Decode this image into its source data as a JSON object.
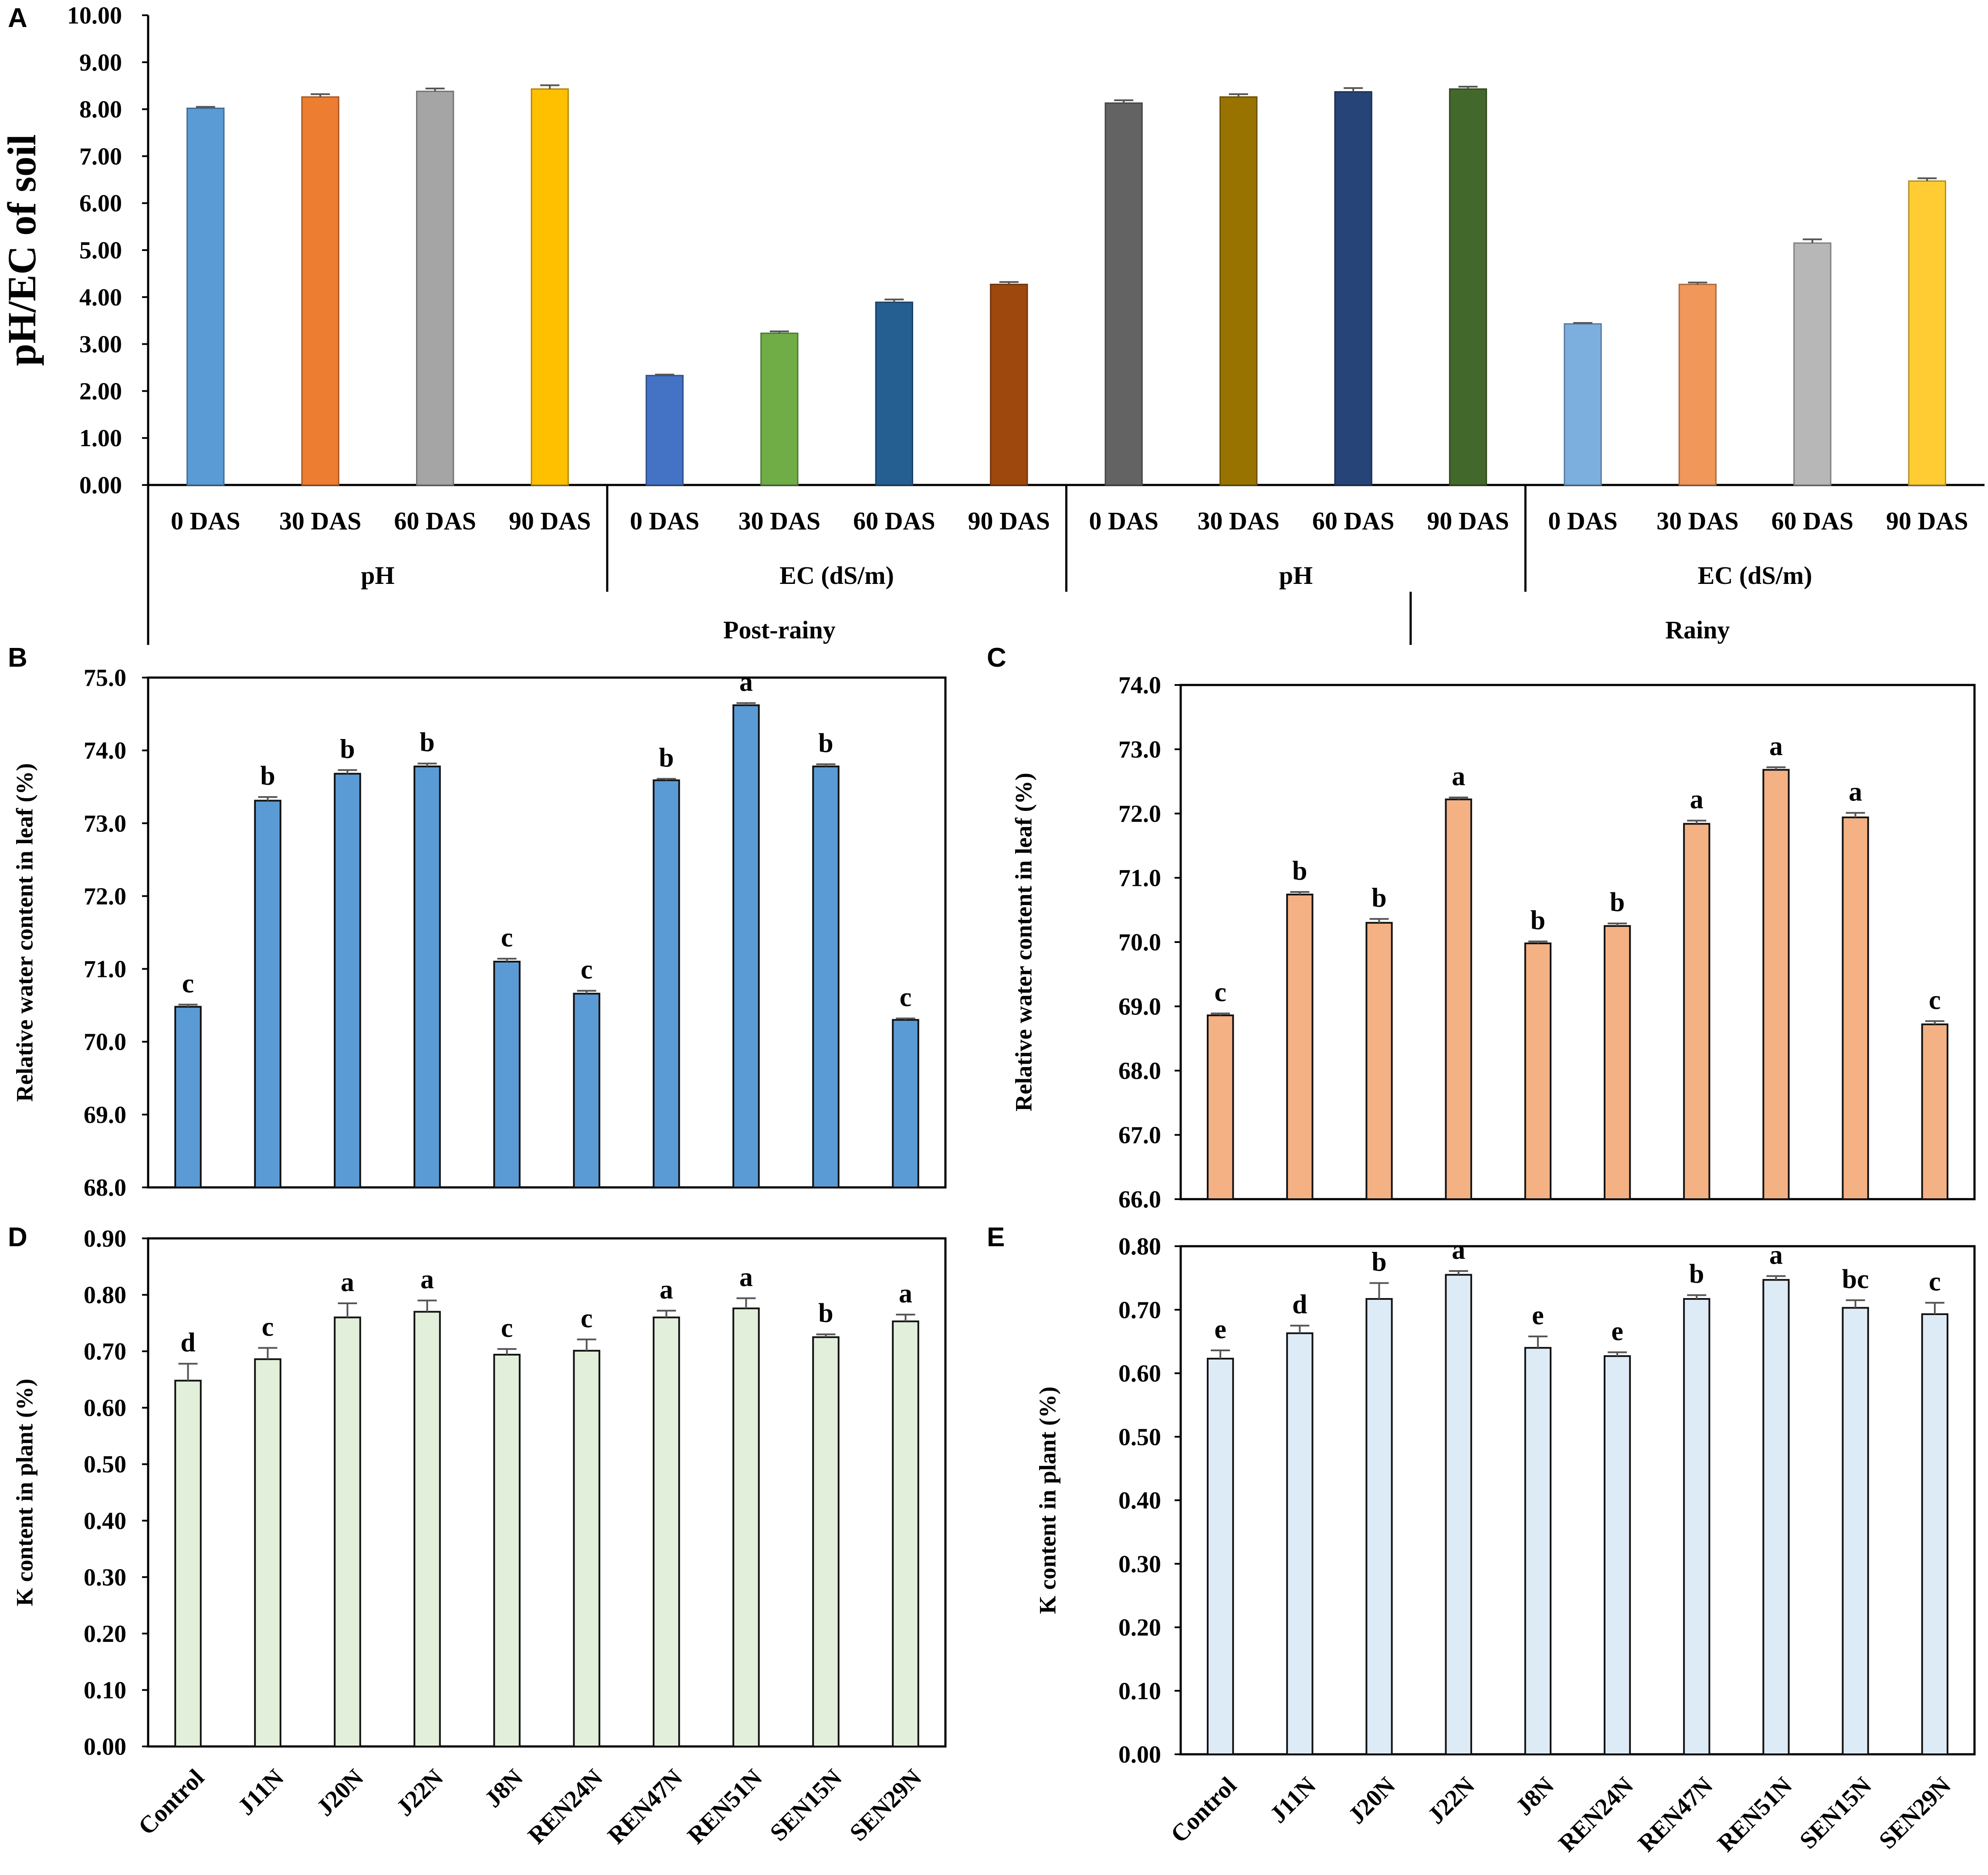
{
  "figure": {
    "panel_letters": [
      "A",
      "B",
      "C",
      "D",
      "E"
    ]
  },
  "chart_data": [
    {
      "panel": "A",
      "type": "bar",
      "ylabel": "pH/EC of soil",
      "ylim": [
        0,
        10
      ],
      "yticks": [
        "0.00",
        "1.00",
        "2.00",
        "3.00",
        "4.00",
        "5.00",
        "6.00",
        "7.00",
        "8.00",
        "9.00",
        "10.00"
      ],
      "categories": [
        "0 DAS",
        "30 DAS",
        "60 DAS",
        "90 DAS",
        "0 DAS",
        "30 DAS",
        "60 DAS",
        "90 DAS",
        "0 DAS",
        "30 DAS",
        "60 DAS",
        "90 DAS",
        "0 DAS",
        "30 DAS",
        "60 DAS",
        "90 DAS"
      ],
      "values": [
        8.02,
        8.26,
        8.38,
        8.43,
        2.33,
        3.23,
        3.89,
        4.27,
        8.13,
        8.26,
        8.37,
        8.43,
        3.43,
        4.27,
        5.15,
        6.47
      ],
      "errors": [
        0.03,
        0.06,
        0.06,
        0.08,
        0.02,
        0.04,
        0.06,
        0.05,
        0.06,
        0.06,
        0.08,
        0.05,
        0.02,
        0.04,
        0.08,
        0.06
      ],
      "colors": [
        "#5B9BD5",
        "#ED7D31",
        "#A5A5A5",
        "#FFC000",
        "#4472C4",
        "#70AD47",
        "#255E91",
        "#9E480E",
        "#636363",
        "#997300",
        "#264478",
        "#43682B",
        "#7CAFDD",
        "#F1975A",
        "#B7B7B7",
        "#FFCD33"
      ],
      "group_labels": [
        {
          "label": "pH",
          "from": 0,
          "to": 3
        },
        {
          "label": "EC (dS/m)",
          "from": 4,
          "to": 7
        },
        {
          "label": "pH",
          "from": 8,
          "to": 11
        },
        {
          "label": "EC (dS/m)",
          "from": 12,
          "to": 15
        }
      ],
      "season_labels": [
        {
          "label": "Post-rainy",
          "from": 0,
          "to": 10
        },
        {
          "label": "Rainy",
          "from": 11,
          "to": 15
        }
      ]
    },
    {
      "panel": "B",
      "type": "bar",
      "ylabel": "Relative water content in leaf (%)",
      "ylim": [
        68,
        75
      ],
      "yticks": [
        "68.0",
        "69.0",
        "70.0",
        "71.0",
        "72.0",
        "73.0",
        "74.0",
        "75.0"
      ],
      "categories": [
        "Control",
        "J11N",
        "J20N",
        "J22N",
        "J8N",
        "REN24N",
        "REN47N",
        "REN51N",
        "SEN15N",
        "SEN29N"
      ],
      "values": [
        70.48,
        73.31,
        73.68,
        73.78,
        71.1,
        70.66,
        73.59,
        74.62,
        73.78,
        70.3
      ],
      "errors": [
        0.03,
        0.05,
        0.05,
        0.04,
        0.04,
        0.04,
        0.02,
        0.03,
        0.03,
        0.02
      ],
      "letters": [
        "c",
        "b",
        "b",
        "b",
        "c",
        "c",
        "b",
        "a",
        "b",
        "c"
      ],
      "color": "#5B9BD5"
    },
    {
      "panel": "C",
      "type": "bar",
      "ylabel": "Relative water content in leaf (%)",
      "ylim": [
        66,
        74
      ],
      "yticks": [
        "66.0",
        "67.0",
        "68.0",
        "69.0",
        "70.0",
        "71.0",
        "72.0",
        "73.0",
        "74.0"
      ],
      "categories": [
        "Control",
        "J11N",
        "J20N",
        "J22N",
        "J8N",
        "REN24N",
        "REN47N",
        "REN51N",
        "SEN15N",
        "SEN29N"
      ],
      "values": [
        68.86,
        70.74,
        70.3,
        72.22,
        69.98,
        70.25,
        71.84,
        72.68,
        71.94,
        68.72
      ],
      "errors": [
        0.03,
        0.04,
        0.06,
        0.03,
        0.03,
        0.04,
        0.05,
        0.04,
        0.07,
        0.05
      ],
      "letters": [
        "c",
        "b",
        "b",
        "a",
        "b",
        "b",
        "a",
        "a",
        "a",
        "c"
      ],
      "color": "#F4B183"
    },
    {
      "panel": "D",
      "type": "bar",
      "ylabel": "K content in plant (%)",
      "ylim": [
        0,
        0.9
      ],
      "yticks": [
        "0.00",
        "0.10",
        "0.20",
        "0.30",
        "0.40",
        "0.50",
        "0.60",
        "0.70",
        "0.80",
        "0.90"
      ],
      "categories": [
        "Control",
        "J11N",
        "J20N",
        "J22N",
        "J8N",
        "REN24N",
        "REN47N",
        "REN51N",
        "SEN15N",
        "SEN29N"
      ],
      "values": [
        0.648,
        0.686,
        0.76,
        0.77,
        0.694,
        0.701,
        0.76,
        0.776,
        0.725,
        0.753
      ],
      "errors": [
        0.03,
        0.02,
        0.025,
        0.02,
        0.01,
        0.02,
        0.012,
        0.018,
        0.005,
        0.012
      ],
      "letters": [
        "d",
        "c",
        "a",
        "a",
        "c",
        "c",
        "a",
        "a",
        "b",
        "a"
      ],
      "color": "#E2EFDA"
    },
    {
      "panel": "E",
      "type": "bar",
      "ylabel": "K content in plant (%)",
      "ylim": [
        0,
        0.8
      ],
      "yticks": [
        "0.00",
        "0.10",
        "0.20",
        "0.30",
        "0.40",
        "0.50",
        "0.60",
        "0.70",
        "0.80"
      ],
      "categories": [
        "Control",
        "J11N",
        "J20N",
        "J22N",
        "J8N",
        "REN24N",
        "REN47N",
        "REN51N",
        "SEN15N",
        "SEN29N"
      ],
      "values": [
        0.623,
        0.663,
        0.717,
        0.755,
        0.64,
        0.627,
        0.717,
        0.747,
        0.703,
        0.693
      ],
      "errors": [
        0.013,
        0.012,
        0.025,
        0.006,
        0.018,
        0.006,
        0.006,
        0.006,
        0.012,
        0.018
      ],
      "letters": [
        "e",
        "d",
        "b",
        "a",
        "e",
        "e",
        "b",
        "a",
        "bc",
        "c"
      ],
      "color": "#DDEBF7"
    }
  ]
}
